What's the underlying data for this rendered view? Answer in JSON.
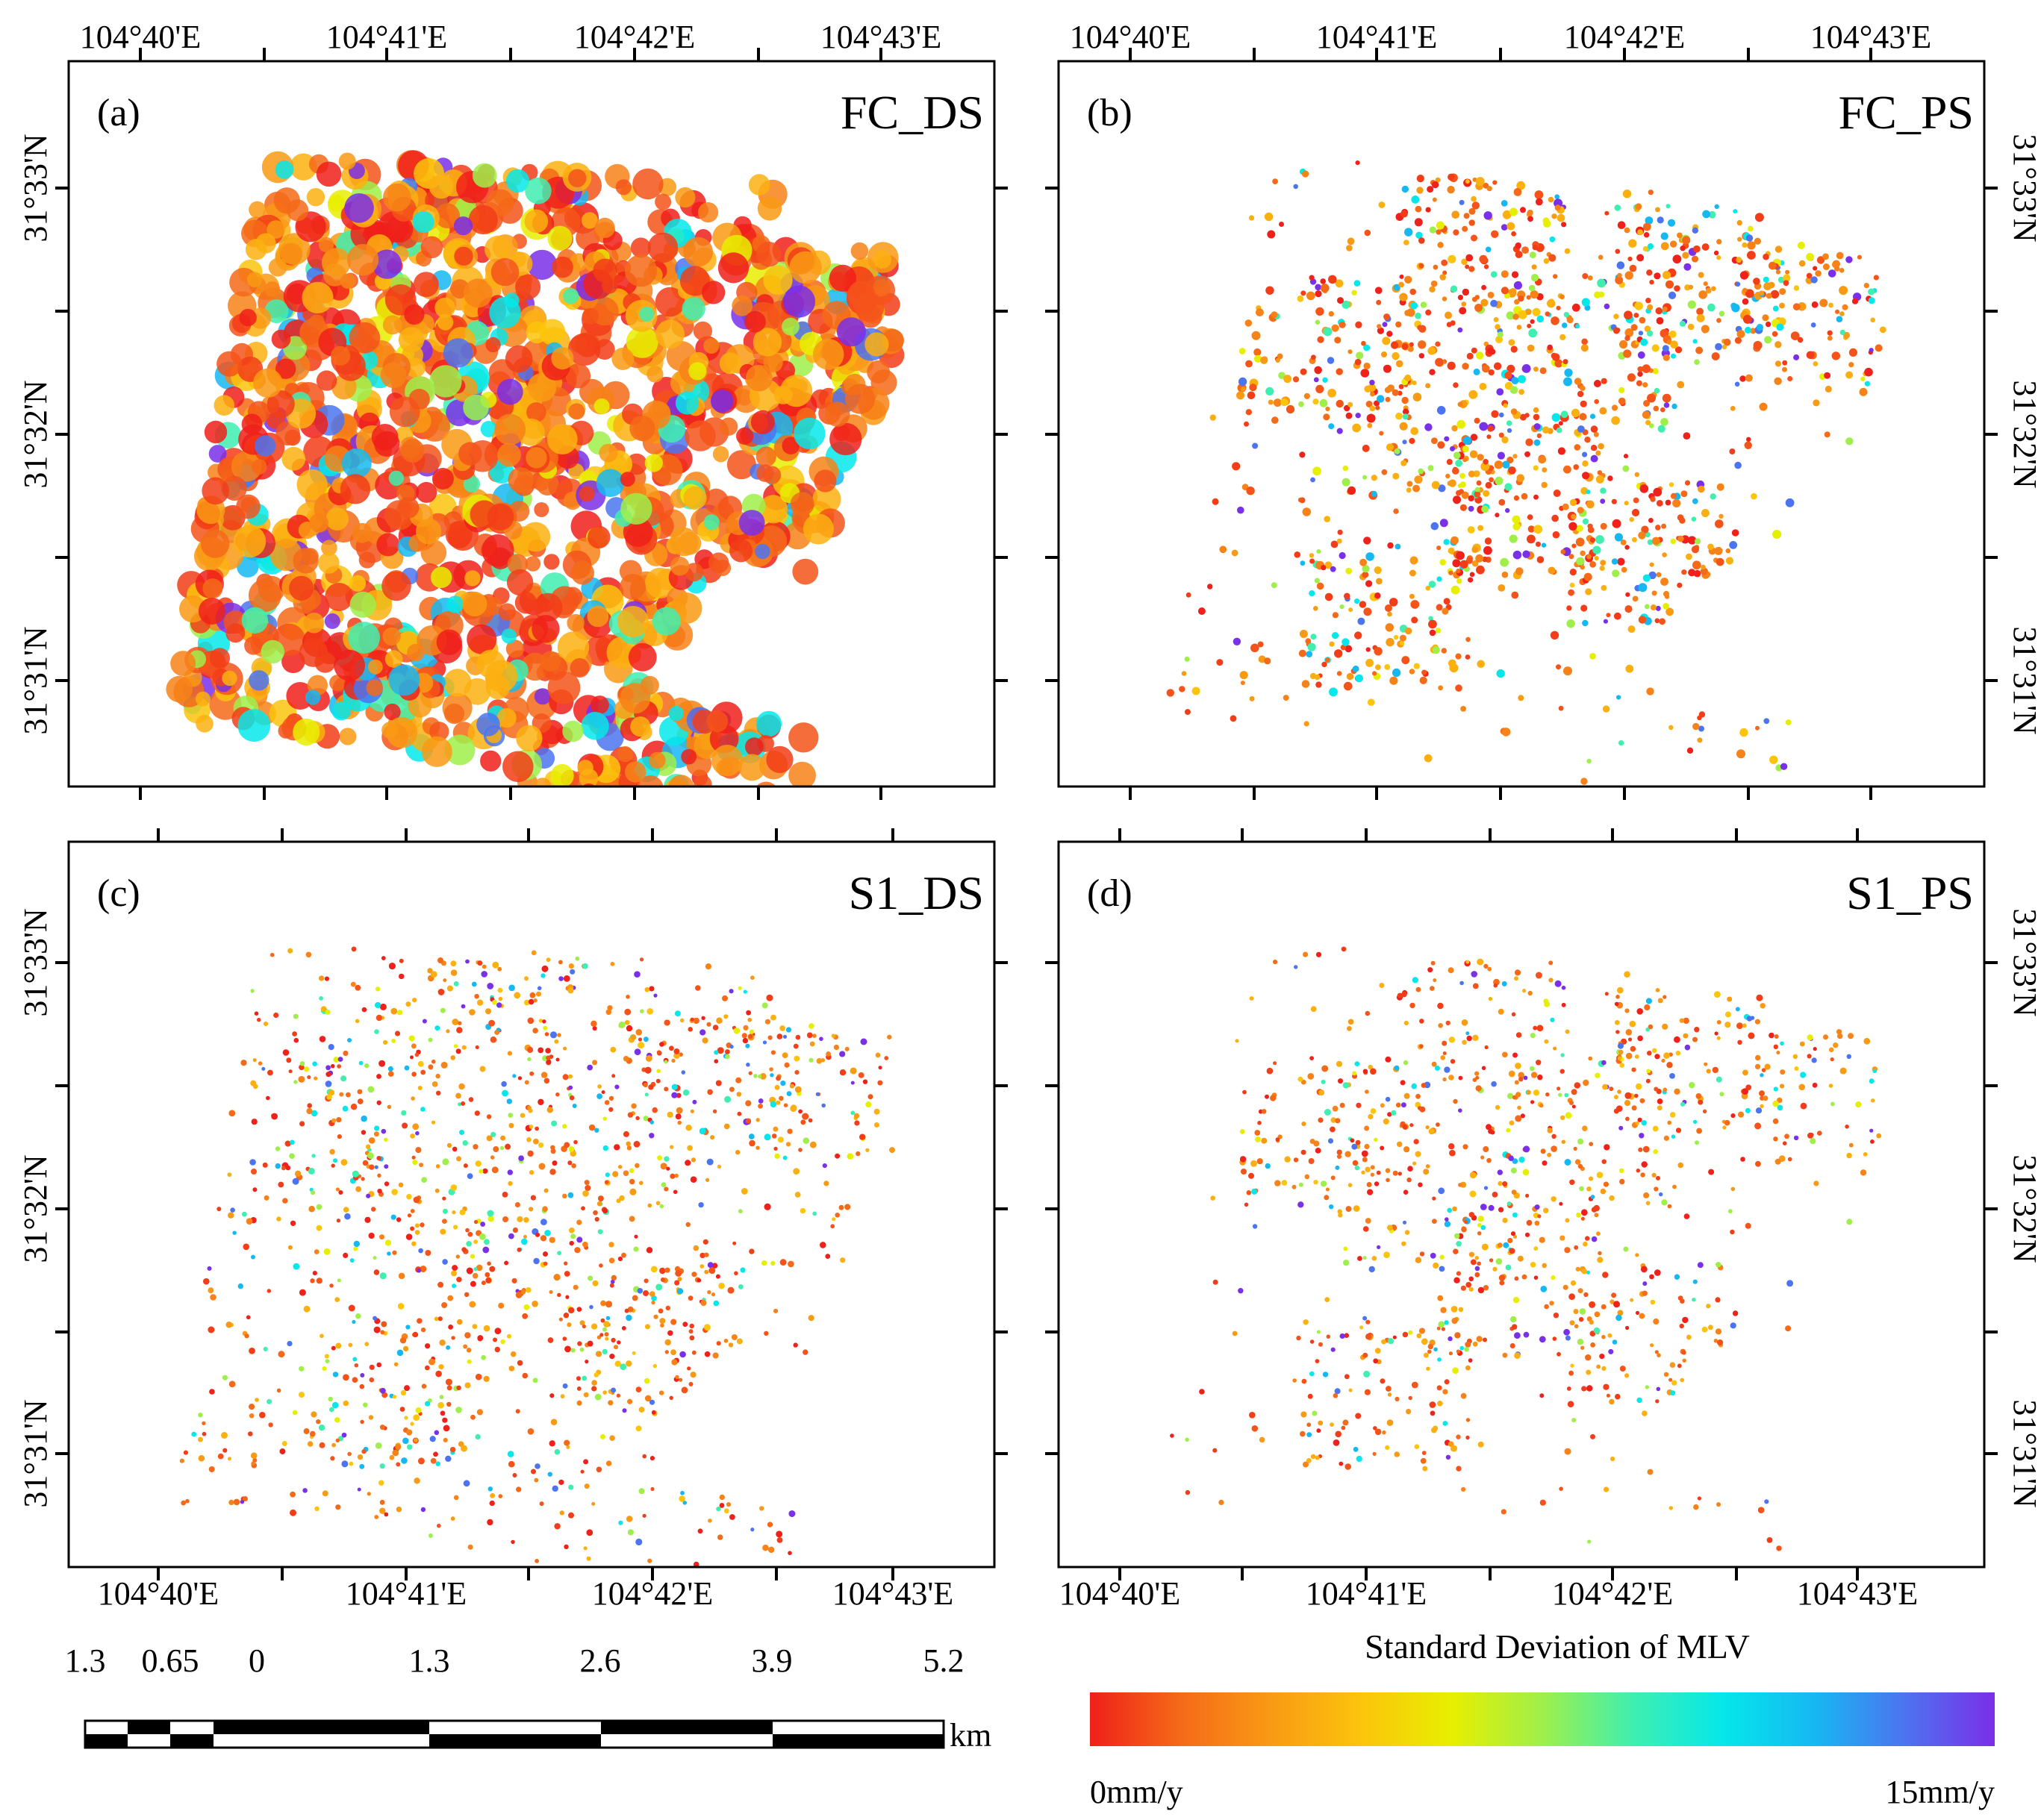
{
  "panels": [
    {
      "letter": "(a)",
      "name": "FC_DS",
      "lon_labels": [
        "104°40'E",
        "104°41'E",
        "104°42'E",
        "104°43'E"
      ],
      "lat_labels": [
        "31°33'N",
        "31°32'N",
        "31°31'N"
      ],
      "lon_label_side": "top",
      "lat_label_side": "left"
    },
    {
      "letter": "(b)",
      "name": "FC_PS",
      "lon_labels": [
        "104°40'E",
        "104°41'E",
        "104°42'E",
        "104°43'E"
      ],
      "lat_labels": [
        "31°33'N",
        "31°32'N",
        "31°31'N"
      ],
      "lon_label_side": "top",
      "lat_label_side": "right"
    },
    {
      "letter": "(c)",
      "name": "S1_DS",
      "lon_labels": [
        "104°40'E",
        "104°41'E",
        "104°42'E",
        "104°43'E"
      ],
      "lat_labels": [
        "31°33'N",
        "31°32'N",
        "31°31'N"
      ],
      "lon_label_side": "bottom",
      "lat_label_side": "left"
    },
    {
      "letter": "(d)",
      "name": "S1_PS",
      "lon_labels": [
        "104°40'E",
        "104°41'E",
        "104°42'E",
        "104°43'E"
      ],
      "lat_labels": [
        "31°33'N",
        "31°32'N",
        "31°31'N"
      ],
      "lon_label_side": "bottom",
      "lat_label_side": "right"
    }
  ],
  "scale_bar": {
    "labels": [
      "1.3",
      "0.65",
      "0",
      "1.3",
      "2.6",
      "3.9",
      "5.2"
    ],
    "unit": "km"
  },
  "colorbar": {
    "title": "Standard Deviation of MLV",
    "min_label": "0mm/y",
    "max_label": "15mm/y",
    "min_value": 0,
    "max_value": 15,
    "unit": "mm/y",
    "colors": [
      "#f0201a",
      "#f56a18",
      "#f99a14",
      "#fcc40c",
      "#e7ef00",
      "#9fef4a",
      "#3fefb0",
      "#05e7ea",
      "#16b8f2",
      "#4c74f0",
      "#7a2fe8"
    ]
  }
}
